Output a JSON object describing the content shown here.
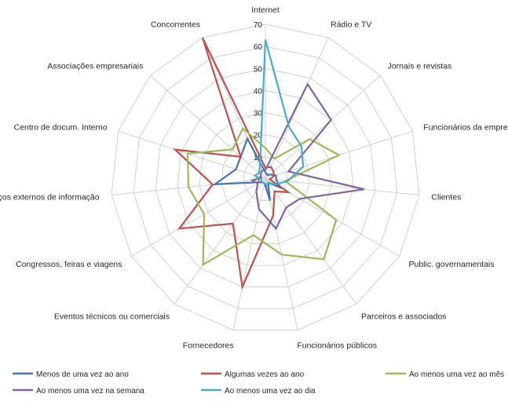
{
  "chart_data": {
    "type": "radar",
    "title": "",
    "rmax": 70,
    "ticks": [
      0,
      10,
      20,
      30,
      40,
      50,
      60,
      70
    ],
    "grid": true,
    "legend_position": "bottom",
    "categories": [
      "Internet",
      "Rádio e TV",
      "Jornais e revistas",
      "Funcionários da empresa",
      "Clientes",
      "Public. governamentais",
      "Parceiros e associados",
      "Funcionários públicos",
      "Fornecedores",
      "Eventos técnicos ou comerciais",
      "Congressos, feiras e viagens",
      "Serviços externos de informação",
      "Centro de docum. Interno",
      "Associações empresariais",
      "Concorrentes"
    ],
    "series": [
      {
        "name": "Menos de uma vez ao ano",
        "color": "#4573b5",
        "values": [
          3,
          2,
          3,
          5,
          5,
          8,
          2,
          10,
          2,
          2,
          3,
          23,
          14,
          15,
          20
        ]
      },
      {
        "name": "Algumas vezes ao ano",
        "color": "#c0504d",
        "values": [
          5,
          6,
          5,
          4,
          2,
          12,
          7,
          17,
          50,
          25,
          45,
          24,
          43,
          15,
          70
        ]
      },
      {
        "name": "Ao menos uma vez ao mês",
        "color": "#9bbb59",
        "values": [
          14,
          10,
          27,
          35,
          9,
          37,
          45,
          35,
          26,
          48,
          32,
          35,
          37,
          20,
          25
        ]
      },
      {
        "name": "Ao menos uma vez na semana",
        "color": "#8064a2",
        "values": [
          4,
          47,
          40,
          11,
          45,
          18,
          16,
          23,
          14,
          7,
          4,
          6,
          2,
          3,
          4
        ]
      },
      {
        "name": "Ao menos uma vez ao dia",
        "color": "#4bacc6",
        "values": [
          63,
          26,
          22,
          18,
          10,
          5,
          2,
          3,
          2,
          2,
          2,
          2,
          5,
          4,
          6
        ]
      }
    ]
  }
}
